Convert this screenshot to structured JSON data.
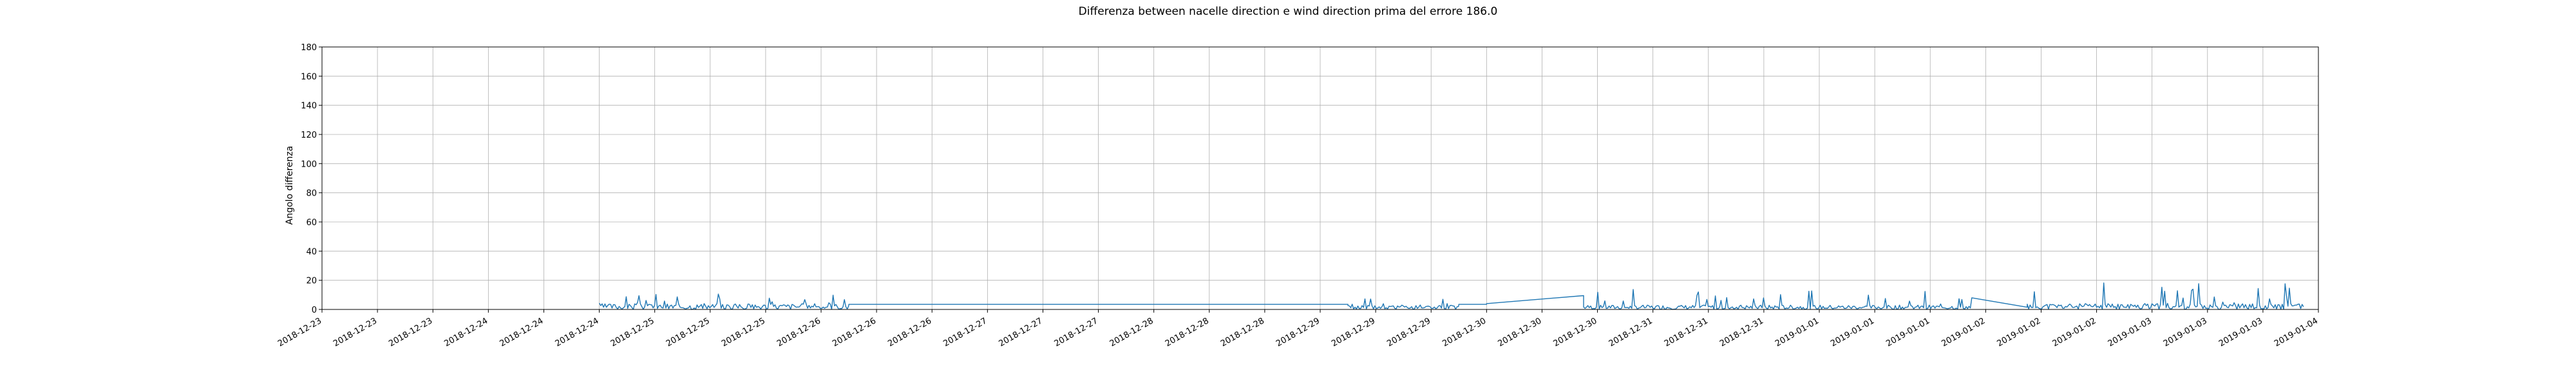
{
  "chart_data": {
    "type": "line",
    "title": "Differenza between nacelle direction e wind direction prima del errore 186.0",
    "xlabel": "",
    "ylabel": "Angolo differenza",
    "ylim": [
      0,
      180
    ],
    "y_ticks": [
      "0",
      "20",
      "40",
      "60",
      "80",
      "100",
      "120",
      "140",
      "160",
      "180"
    ],
    "x_tick_labels": [
      "2018-12-23",
      "2018-12-23",
      "2018-12-23",
      "2018-12-24",
      "2018-12-24",
      "2018-12-24",
      "2018-12-25",
      "2018-12-25",
      "2018-12-25",
      "2018-12-26",
      "2018-12-26",
      "2018-12-26",
      "2018-12-27",
      "2018-12-27",
      "2018-12-27",
      "2018-12-28",
      "2018-12-28",
      "2018-12-28",
      "2018-12-29",
      "2018-12-29",
      "2018-12-29",
      "2018-12-30",
      "2018-12-30",
      "2018-12-30",
      "2018-12-31",
      "2018-12-31",
      "2018-12-31",
      "2019-01-01",
      "2019-01-01",
      "2019-01-01",
      "2019-01-02",
      "2019-01-02",
      "2019-01-02",
      "2019-01-03",
      "2019-01-03",
      "2019-01-03",
      "2019-01-04"
    ],
    "grid": true,
    "colors": {
      "series": "#1f77b4"
    },
    "series": [
      {
        "segments": [
          {
            "start": "2018-12-24 16:00",
            "end": "2018-12-26 04:00",
            "base": 4,
            "amp": 9,
            "seed": 3
          },
          {
            "start": "2018-12-26 04:00",
            "end": "2018-12-29 04:00",
            "flat": 3.5
          },
          {
            "start": "2018-12-29 04:00",
            "end": "2018-12-29 20:00",
            "base": 3,
            "amp": 7,
            "seed": 5
          },
          {
            "start": "2018-12-29 20:00",
            "end": "2018-12-30 00:00",
            "flat": 3.5
          },
          {
            "start": "2018-12-30 00:00",
            "end": "2018-12-30 14:00",
            "ramp": [
              4,
              9.5
            ]
          },
          {
            "start": "2018-12-30 14:00",
            "end": "2019-01-01 22:00",
            "base": 3,
            "amp": 12,
            "seed": 7
          },
          {
            "start": "2019-01-01 22:00",
            "end": "2019-01-02 06:00",
            "ramp": [
              8,
              1.5
            ]
          },
          {
            "start": "2019-01-02 06:00",
            "end": "2019-01-03 22:00",
            "base": 4,
            "amp": 17,
            "seed": 11
          }
        ]
      }
    ]
  }
}
